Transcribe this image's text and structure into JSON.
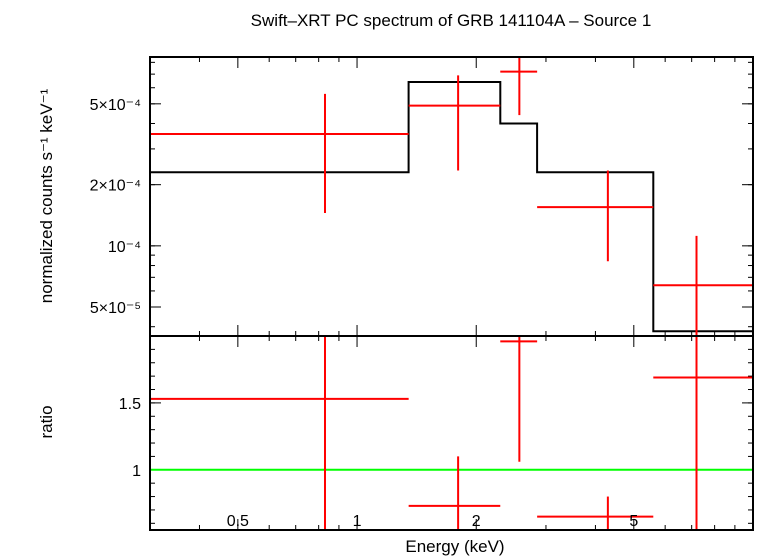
{
  "chart_data": {
    "type": "scatter",
    "title": "Swift–XRT PC spectrum of GRB 141104A – Source 1",
    "xlabel": "Energy (keV)",
    "xscale": "log",
    "xlim": [
      0.3,
      10
    ],
    "x_tick_labels": [
      {
        "value": 0.5,
        "label": "0.5"
      },
      {
        "value": 1,
        "label": "1"
      },
      {
        "value": 2,
        "label": "2"
      },
      {
        "value": 5,
        "label": "5"
      }
    ],
    "colors": {
      "data": "#ff0000",
      "model": "#000000",
      "reference": "#00ff00"
    },
    "panels": [
      {
        "name": "spectrum",
        "ylabel": "normalized counts s⁻¹ keV⁻¹",
        "yscale": "log",
        "ylim": [
          3.6e-05,
          0.00085
        ],
        "y_tick_labels": [
          {
            "value": 0.0005,
            "label": "5×10⁻⁴"
          },
          {
            "value": 0.0002,
            "label": "2×10⁻⁴"
          },
          {
            "value": 0.0001,
            "label": "10⁻⁴"
          },
          {
            "value": 5e-05,
            "label": "5×10⁻⁵"
          }
        ],
        "data": [
          {
            "xlo": 0.3,
            "xhi": 1.35,
            "x": 0.83,
            "y": 0.000355,
            "ylo": 0.000145,
            "yhi": 0.00056
          },
          {
            "xlo": 1.35,
            "xhi": 2.3,
            "x": 1.8,
            "y": 0.00049,
            "ylo": 0.000235,
            "yhi": 0.00069
          },
          {
            "xlo": 2.3,
            "xhi": 2.85,
            "x": 2.57,
            "y": 0.00072,
            "ylo": 0.00044,
            "yhi": 0.00085
          },
          {
            "xlo": 2.85,
            "xhi": 5.6,
            "x": 4.3,
            "y": 0.000155,
            "ylo": 8.4e-05,
            "yhi": 0.000235
          },
          {
            "xlo": 5.6,
            "xhi": 10,
            "x": 7.2,
            "y": 6.4e-05,
            "ylo": 3.6e-05,
            "yhi": 0.000112
          }
        ],
        "model": [
          {
            "xlo": 0.3,
            "xhi": 1.35,
            "y": 0.00023
          },
          {
            "xlo": 1.35,
            "xhi": 2.3,
            "y": 0.00064
          },
          {
            "xlo": 2.3,
            "xhi": 2.85,
            "y": 0.0004
          },
          {
            "xlo": 2.85,
            "xhi": 5.6,
            "y": 0.00023
          },
          {
            "xlo": 5.6,
            "xhi": 10,
            "y": 3.8e-05
          }
        ]
      },
      {
        "name": "ratio",
        "ylabel": "ratio",
        "yscale": "linear",
        "ylim": [
          0.55,
          2.0
        ],
        "y_tick_labels": [
          {
            "value": 1.5,
            "label": "1.5"
          },
          {
            "value": 1,
            "label": "1"
          }
        ],
        "reference_line": 1,
        "data": [
          {
            "xlo": 0.3,
            "xhi": 1.35,
            "x": 0.83,
            "y": 1.53,
            "ylo": 0.55,
            "yhi": 2.0
          },
          {
            "xlo": 1.35,
            "xhi": 2.3,
            "x": 1.8,
            "y": 0.73,
            "ylo": 0.55,
            "yhi": 1.1
          },
          {
            "xlo": 2.3,
            "xhi": 2.85,
            "x": 2.57,
            "y": 1.96,
            "ylo": 1.06,
            "yhi": 2.0
          },
          {
            "xlo": 2.85,
            "xhi": 5.6,
            "x": 4.3,
            "y": 0.65,
            "ylo": 0.55,
            "yhi": 0.8
          },
          {
            "xlo": 5.6,
            "xhi": 10,
            "x": 7.2,
            "y": 1.69,
            "ylo": 0.55,
            "yhi": 2.0
          }
        ]
      }
    ]
  }
}
